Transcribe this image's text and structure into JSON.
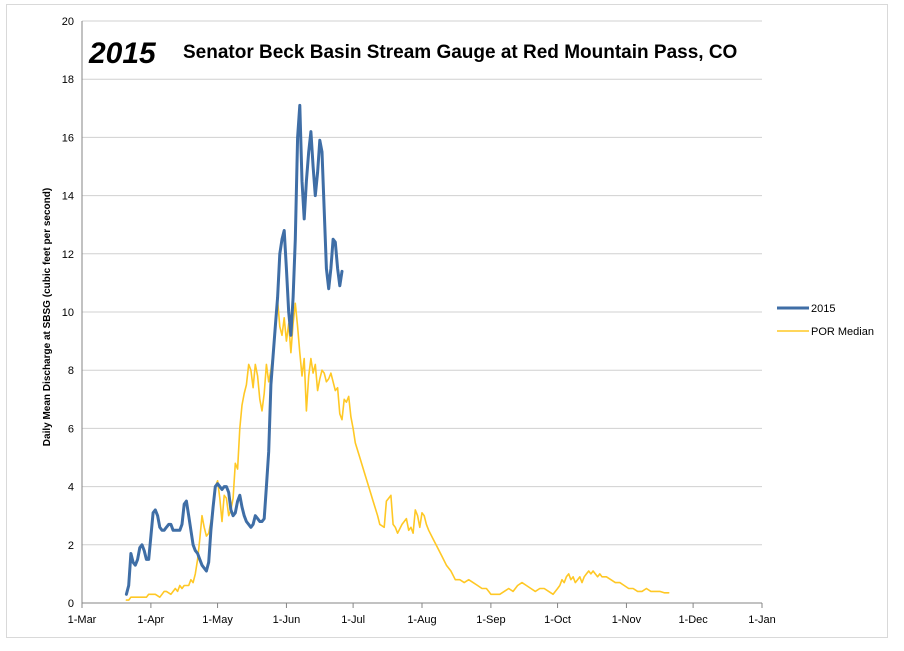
{
  "chart_data": {
    "type": "line",
    "title_year": "2015",
    "title": "Senator Beck Basin Stream Gauge at Red Mountain Pass, CO",
    "ylabel": "Daily Mean Discharge at SBSG (cubic feet per second)",
    "xlabel": "",
    "ylim": [
      0,
      20
    ],
    "yticks": [
      0,
      2,
      4,
      6,
      8,
      10,
      12,
      14,
      16,
      18,
      20
    ],
    "xlim_day_of_year": [
      60,
      366
    ],
    "xticks": [
      {
        "day": 60,
        "label": "1-Mar"
      },
      {
        "day": 91,
        "label": "1-Apr"
      },
      {
        "day": 121,
        "label": "1-May"
      },
      {
        "day": 152,
        "label": "1-Jun"
      },
      {
        "day": 182,
        "label": "1-Jul"
      },
      {
        "day": 213,
        "label": "1-Aug"
      },
      {
        "day": 244,
        "label": "1-Sep"
      },
      {
        "day": 274,
        "label": "1-Oct"
      },
      {
        "day": 305,
        "label": "1-Nov"
      },
      {
        "day": 335,
        "label": "1-Dec"
      },
      {
        "day": 366,
        "label": "1-Jan"
      }
    ],
    "grid": "horizontal",
    "legend_position": "right",
    "series": [
      {
        "name": "2015",
        "color": "#3f6ea6",
        "width": 3,
        "points": [
          [
            80,
            0.3
          ],
          [
            81,
            0.6
          ],
          [
            82,
            1.7
          ],
          [
            83,
            1.4
          ],
          [
            84,
            1.3
          ],
          [
            85,
            1.5
          ],
          [
            86,
            1.9
          ],
          [
            87,
            2.0
          ],
          [
            88,
            1.8
          ],
          [
            89,
            1.5
          ],
          [
            90,
            1.5
          ],
          [
            91,
            2.3
          ],
          [
            92,
            3.1
          ],
          [
            93,
            3.2
          ],
          [
            94,
            3.0
          ],
          [
            95,
            2.6
          ],
          [
            96,
            2.5
          ],
          [
            97,
            2.5
          ],
          [
            98,
            2.6
          ],
          [
            99,
            2.7
          ],
          [
            100,
            2.7
          ],
          [
            101,
            2.5
          ],
          [
            102,
            2.5
          ],
          [
            103,
            2.5
          ],
          [
            104,
            2.5
          ],
          [
            105,
            2.7
          ],
          [
            106,
            3.4
          ],
          [
            107,
            3.5
          ],
          [
            108,
            3.0
          ],
          [
            109,
            2.5
          ],
          [
            110,
            2.0
          ],
          [
            111,
            1.8
          ],
          [
            112,
            1.7
          ],
          [
            113,
            1.5
          ],
          [
            114,
            1.3
          ],
          [
            115,
            1.2
          ],
          [
            116,
            1.1
          ],
          [
            117,
            1.4
          ],
          [
            118,
            2.5
          ],
          [
            119,
            3.3
          ],
          [
            120,
            4.0
          ],
          [
            121,
            4.1
          ],
          [
            122,
            4.0
          ],
          [
            123,
            3.9
          ],
          [
            124,
            4.0
          ],
          [
            125,
            4.0
          ],
          [
            126,
            3.8
          ],
          [
            127,
            3.2
          ],
          [
            128,
            3.0
          ],
          [
            129,
            3.1
          ],
          [
            130,
            3.5
          ],
          [
            131,
            3.7
          ],
          [
            132,
            3.3
          ],
          [
            133,
            3.0
          ],
          [
            134,
            2.8
          ],
          [
            135,
            2.7
          ],
          [
            136,
            2.6
          ],
          [
            137,
            2.7
          ],
          [
            138,
            3.0
          ],
          [
            139,
            2.9
          ],
          [
            140,
            2.8
          ],
          [
            141,
            2.8
          ],
          [
            142,
            2.9
          ],
          [
            143,
            4.0
          ],
          [
            144,
            5.2
          ],
          [
            145,
            7.5
          ],
          [
            146,
            8.5
          ],
          [
            147,
            9.5
          ],
          [
            148,
            10.5
          ],
          [
            149,
            12.0
          ],
          [
            150,
            12.5
          ],
          [
            151,
            12.8
          ],
          [
            152,
            11.5
          ],
          [
            153,
            10.0
          ],
          [
            154,
            9.2
          ],
          [
            155,
            10.5
          ],
          [
            156,
            12.5
          ],
          [
            157,
            16.0
          ],
          [
            158,
            17.1
          ],
          [
            159,
            14.5
          ],
          [
            160,
            13.2
          ],
          [
            161,
            14.5
          ],
          [
            162,
            15.5
          ],
          [
            163,
            16.2
          ],
          [
            164,
            15.0
          ],
          [
            165,
            14.0
          ],
          [
            166,
            14.8
          ],
          [
            167,
            15.9
          ],
          [
            168,
            15.5
          ],
          [
            169,
            13.5
          ],
          [
            170,
            11.5
          ],
          [
            171,
            10.8
          ],
          [
            172,
            11.5
          ],
          [
            173,
            12.5
          ],
          [
            174,
            12.4
          ],
          [
            175,
            11.5
          ],
          [
            176,
            10.9
          ],
          [
            177,
            11.4
          ]
        ]
      },
      {
        "name": "POR Median",
        "color": "#ffc825",
        "width": 1.6,
        "points": [
          [
            80,
            0.1
          ],
          [
            81,
            0.1
          ],
          [
            82,
            0.2
          ],
          [
            83,
            0.2
          ],
          [
            85,
            0.2
          ],
          [
            87,
            0.2
          ],
          [
            89,
            0.2
          ],
          [
            90,
            0.3
          ],
          [
            91,
            0.3
          ],
          [
            93,
            0.3
          ],
          [
            95,
            0.2
          ],
          [
            96,
            0.3
          ],
          [
            97,
            0.4
          ],
          [
            98,
            0.4
          ],
          [
            100,
            0.3
          ],
          [
            101,
            0.4
          ],
          [
            102,
            0.5
          ],
          [
            103,
            0.4
          ],
          [
            104,
            0.6
          ],
          [
            105,
            0.5
          ],
          [
            106,
            0.6
          ],
          [
            108,
            0.6
          ],
          [
            109,
            0.8
          ],
          [
            110,
            0.7
          ],
          [
            111,
            1.0
          ],
          [
            112,
            1.5
          ],
          [
            113,
            2.2
          ],
          [
            114,
            3.0
          ],
          [
            115,
            2.6
          ],
          [
            116,
            2.3
          ],
          [
            117,
            2.4
          ],
          [
            118,
            2.8
          ],
          [
            119,
            3.3
          ],
          [
            120,
            4.0
          ],
          [
            121,
            4.2
          ],
          [
            122,
            3.6
          ],
          [
            123,
            2.8
          ],
          [
            124,
            3.7
          ],
          [
            125,
            3.6
          ],
          [
            126,
            3.0
          ],
          [
            127,
            3.2
          ],
          [
            128,
            3.6
          ],
          [
            129,
            4.8
          ],
          [
            130,
            4.6
          ],
          [
            131,
            6.0
          ],
          [
            132,
            6.8
          ],
          [
            133,
            7.2
          ],
          [
            134,
            7.5
          ],
          [
            135,
            8.2
          ],
          [
            136,
            8.0
          ],
          [
            137,
            7.4
          ],
          [
            138,
            8.2
          ],
          [
            139,
            7.8
          ],
          [
            140,
            7.0
          ],
          [
            141,
            6.6
          ],
          [
            142,
            7.2
          ],
          [
            143,
            8.2
          ],
          [
            144,
            7.6
          ],
          [
            145,
            8.0
          ],
          [
            146,
            8.6
          ],
          [
            147,
            9.3
          ],
          [
            148,
            10.4
          ],
          [
            149,
            9.5
          ],
          [
            150,
            9.2
          ],
          [
            151,
            9.8
          ],
          [
            152,
            9.0
          ],
          [
            153,
            9.6
          ],
          [
            154,
            8.6
          ],
          [
            155,
            9.6
          ],
          [
            156,
            10.3
          ],
          [
            157,
            9.5
          ],
          [
            158,
            8.6
          ],
          [
            159,
            7.8
          ],
          [
            160,
            8.4
          ],
          [
            161,
            6.6
          ],
          [
            162,
            7.8
          ],
          [
            163,
            8.4
          ],
          [
            164,
            7.9
          ],
          [
            165,
            8.2
          ],
          [
            166,
            7.3
          ],
          [
            167,
            7.7
          ],
          [
            168,
            8.0
          ],
          [
            169,
            7.9
          ],
          [
            170,
            7.6
          ],
          [
            171,
            7.7
          ],
          [
            172,
            7.9
          ],
          [
            173,
            7.6
          ],
          [
            174,
            7.3
          ],
          [
            175,
            7.4
          ],
          [
            176,
            6.5
          ],
          [
            177,
            6.3
          ],
          [
            178,
            7.0
          ],
          [
            179,
            6.9
          ],
          [
            180,
            7.1
          ],
          [
            181,
            6.4
          ],
          [
            182,
            6.0
          ],
          [
            183,
            5.5
          ],
          [
            185,
            5.0
          ],
          [
            187,
            4.5
          ],
          [
            189,
            4.0
          ],
          [
            191,
            3.5
          ],
          [
            193,
            3.0
          ],
          [
            194,
            2.7
          ],
          [
            196,
            2.6
          ],
          [
            197,
            3.5
          ],
          [
            198,
            3.6
          ],
          [
            199,
            3.7
          ],
          [
            200,
            2.7
          ],
          [
            201,
            2.6
          ],
          [
            202,
            2.4
          ],
          [
            204,
            2.7
          ],
          [
            206,
            2.9
          ],
          [
            207,
            2.5
          ],
          [
            208,
            2.6
          ],
          [
            209,
            2.4
          ],
          [
            210,
            3.2
          ],
          [
            211,
            3.0
          ],
          [
            212,
            2.6
          ],
          [
            213,
            3.1
          ],
          [
            214,
            3.0
          ],
          [
            215,
            2.7
          ],
          [
            216,
            2.5
          ],
          [
            218,
            2.2
          ],
          [
            220,
            1.9
          ],
          [
            222,
            1.6
          ],
          [
            224,
            1.3
          ],
          [
            226,
            1.1
          ],
          [
            228,
            0.8
          ],
          [
            230,
            0.8
          ],
          [
            232,
            0.7
          ],
          [
            234,
            0.8
          ],
          [
            236,
            0.7
          ],
          [
            238,
            0.6
          ],
          [
            240,
            0.5
          ],
          [
            242,
            0.5
          ],
          [
            243,
            0.4
          ],
          [
            244,
            0.3
          ],
          [
            246,
            0.3
          ],
          [
            248,
            0.3
          ],
          [
            250,
            0.4
          ],
          [
            252,
            0.5
          ],
          [
            254,
            0.4
          ],
          [
            255,
            0.5
          ],
          [
            256,
            0.6
          ],
          [
            258,
            0.7
          ],
          [
            260,
            0.6
          ],
          [
            262,
            0.5
          ],
          [
            264,
            0.4
          ],
          [
            266,
            0.5
          ],
          [
            268,
            0.5
          ],
          [
            270,
            0.4
          ],
          [
            272,
            0.3
          ],
          [
            274,
            0.5
          ],
          [
            275,
            0.6
          ],
          [
            276,
            0.8
          ],
          [
            277,
            0.7
          ],
          [
            278,
            0.9
          ],
          [
            279,
            1.0
          ],
          [
            280,
            0.8
          ],
          [
            281,
            0.9
          ],
          [
            282,
            0.7
          ],
          [
            283,
            0.8
          ],
          [
            284,
            0.9
          ],
          [
            285,
            0.7
          ],
          [
            286,
            0.9
          ],
          [
            287,
            1.0
          ],
          [
            288,
            1.1
          ],
          [
            289,
            1.0
          ],
          [
            290,
            1.1
          ],
          [
            291,
            1.0
          ],
          [
            292,
            0.9
          ],
          [
            293,
            1.0
          ],
          [
            294,
            0.9
          ],
          [
            296,
            0.9
          ],
          [
            298,
            0.8
          ],
          [
            300,
            0.7
          ],
          [
            302,
            0.7
          ],
          [
            304,
            0.6
          ],
          [
            306,
            0.5
          ],
          [
            308,
            0.5
          ],
          [
            310,
            0.4
          ],
          [
            312,
            0.4
          ],
          [
            314,
            0.5
          ],
          [
            316,
            0.4
          ],
          [
            318,
            0.4
          ],
          [
            320,
            0.4
          ],
          [
            322,
            0.35
          ],
          [
            324,
            0.35
          ]
        ]
      }
    ]
  }
}
